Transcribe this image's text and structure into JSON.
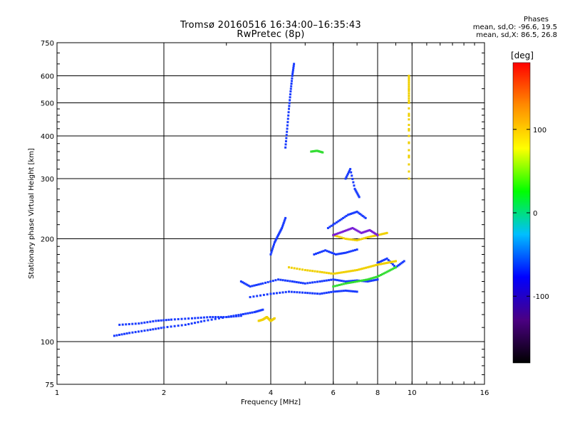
{
  "chart_data": {
    "type": "scatter",
    "title": "Tromsø 20160516 16:34:00–16:35:43",
    "subtitle": "RwPretec (8p)",
    "stats": {
      "header": "Phases",
      "line_o": "mean, sd,O: -96.6, 19.5",
      "line_x": "mean, sd,X:  86.5, 26.8"
    },
    "xlabel": "Frequency [MHz]",
    "ylabel": "Stationary phase Virtual Height [km]",
    "x_scale": "log",
    "y_scale": "log",
    "xlim": [
      1,
      16
    ],
    "ylim": [
      75,
      750
    ],
    "x_ticks": [
      1,
      2,
      4,
      6,
      8,
      10,
      16
    ],
    "x_tick_labels": [
      "1",
      "2",
      "4",
      "6",
      "8",
      "10",
      "16"
    ],
    "y_ticks": [
      75,
      100,
      200,
      300,
      400,
      500,
      600,
      750
    ],
    "y_tick_labels": [
      "75",
      "100",
      "200",
      "300",
      "400",
      "500",
      "600",
      "750"
    ],
    "grid": true,
    "colorbar": {
      "label": "[deg]",
      "range": [
        -180,
        180
      ],
      "ticks": [
        100,
        0,
        -100
      ],
      "tick_labels": [
        "100",
        "0",
        "-100"
      ],
      "colors": [
        "#000000",
        "#4b0082",
        "#0000ff",
        "#00bfff",
        "#00ff00",
        "#ffff00",
        "#ff8c00",
        "#ff0000"
      ]
    },
    "series": [
      {
        "color": "#1a3cff",
        "traces": [
          {
            "x": [
              1.45,
              1.6,
              1.8,
              2.0,
              2.3,
              2.6,
              3.0,
              3.3,
              3.6,
              3.8
            ],
            "y": [
              104,
              106,
              108,
              110,
              112,
              115,
              118,
              120,
              122,
              124
            ]
          },
          {
            "x": [
              1.5,
              1.7,
              1.9,
              2.1,
              2.4,
              2.7,
              3.0,
              3.3
            ],
            "y": [
              112,
              113,
              115,
              116,
              117,
              118,
              118,
              119
            ]
          },
          {
            "x": [
              3.3,
              3.5,
              3.8,
              4.2,
              4.6,
              5.0,
              5.5,
              6.0,
              6.5,
              7.0,
              7.5,
              8.0
            ],
            "y": [
              150,
              145,
              148,
              152,
              150,
              148,
              150,
              152,
              150,
              151,
              150,
              152
            ]
          },
          {
            "x": [
              3.5,
              4.0,
              4.5,
              5.0,
              5.5,
              6.0,
              6.5,
              7.0
            ],
            "y": [
              135,
              138,
              140,
              139,
              138,
              140,
              141,
              140
            ]
          },
          {
            "x": [
              4.4,
              4.45,
              4.5,
              4.55,
              4.6,
              4.65
            ],
            "y": [
              370,
              420,
              480,
              540,
              600,
              650
            ]
          },
          {
            "x": [
              4.0,
              4.1,
              4.2,
              4.3,
              4.4
            ],
            "y": [
              180,
              195,
              205,
              215,
              230
            ]
          },
          {
            "x": [
              5.3,
              5.7,
              6.1,
              6.5,
              7.0
            ],
            "y": [
              180,
              185,
              180,
              182,
              186
            ]
          },
          {
            "x": [
              5.8,
              6.2,
              6.6,
              7.0,
              7.4
            ],
            "y": [
              215,
              225,
              235,
              240,
              230
            ]
          },
          {
            "x": [
              6.5,
              6.7,
              6.9,
              7.1
            ],
            "y": [
              300,
              320,
              280,
              265
            ]
          },
          {
            "x": [
              8.0,
              8.5,
              9.0,
              9.5
            ],
            "y": [
              170,
              175,
              165,
              172
            ]
          }
        ]
      },
      {
        "color": "#f0d000",
        "traces": [
          {
            "x": [
              3.7,
              3.8,
              3.9,
              4.0,
              4.1
            ],
            "y": [
              115,
              116,
              118,
              115,
              117
            ]
          },
          {
            "x": [
              4.5,
              5.0,
              5.5,
              6.0,
              6.5,
              7.0,
              7.5,
              8.0,
              8.5,
              9.0
            ],
            "y": [
              165,
              162,
              160,
              158,
              160,
              162,
              165,
              168,
              170,
              172
            ]
          },
          {
            "x": [
              6.0,
              6.5,
              7.0,
              7.5,
              8.0,
              8.5
            ],
            "y": [
              205,
              200,
              198,
              202,
              205,
              208
            ]
          },
          {
            "x": [
              9.8,
              9.8,
              9.8,
              9.8,
              9.8,
              9.8
            ],
            "y": [
              300,
              400,
              500,
              550,
              600,
              350
            ]
          }
        ]
      },
      {
        "color": "#33dd33",
        "traces": [
          {
            "x": [
              5.2,
              5.4,
              5.6
            ],
            "y": [
              360,
              362,
              358
            ]
          },
          {
            "x": [
              6.0,
              6.5,
              7.0,
              7.5,
              8.0,
              8.5,
              9.0
            ],
            "y": [
              145,
              148,
              150,
              152,
              155,
              160,
              165
            ]
          }
        ]
      },
      {
        "color": "#7a1fd6",
        "traces": [
          {
            "x": [
              6.0,
              6.4,
              6.8,
              7.2,
              7.6,
              8.0
            ],
            "y": [
              205,
              210,
              215,
              208,
              212,
              205
            ]
          }
        ]
      }
    ]
  }
}
